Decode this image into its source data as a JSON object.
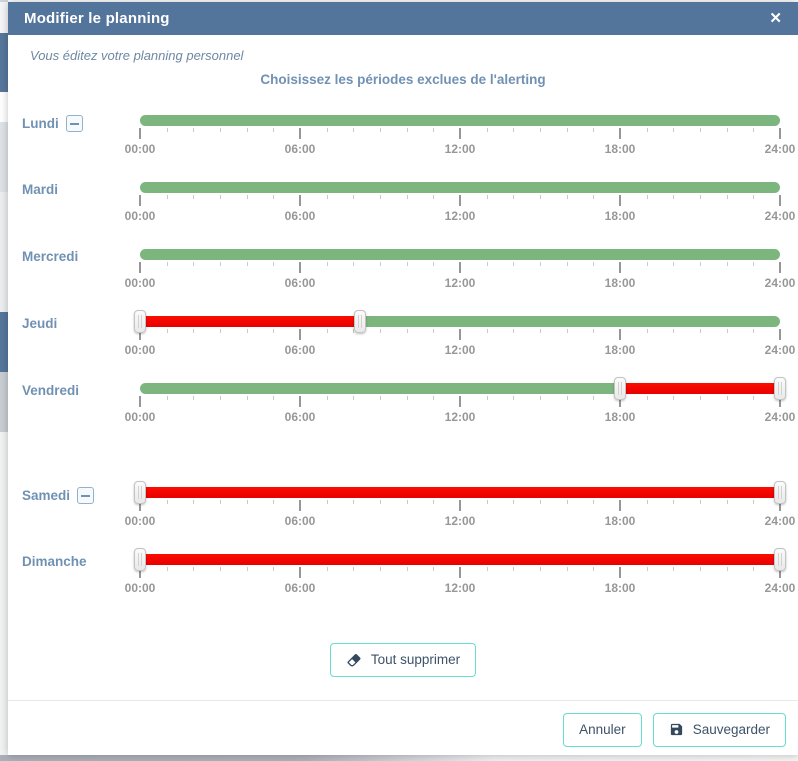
{
  "modal": {
    "title": "Modifier le planning",
    "close_glyph": "✕",
    "subtitle": "Vous éditez votre planning personnel",
    "heading": "Choisissez les périodes exclues de l'alerting"
  },
  "slider": {
    "min_hour": 0,
    "max_hour": 24,
    "minor_tick_every_hours": 1,
    "major_tick_every_hours": 6,
    "major_tick_labels": [
      "00:00",
      "06:00",
      "12:00",
      "18:00",
      "24:00"
    ]
  },
  "days": [
    {
      "label": "Lundi",
      "removable": true,
      "gap_before": false,
      "segments": [
        {
          "from": 0,
          "to": 24,
          "color": "green"
        }
      ],
      "handles": []
    },
    {
      "label": "Mardi",
      "removable": false,
      "gap_before": false,
      "segments": [
        {
          "from": 0,
          "to": 24,
          "color": "green"
        }
      ],
      "handles": []
    },
    {
      "label": "Mercredi",
      "removable": false,
      "gap_before": false,
      "segments": [
        {
          "from": 0,
          "to": 24,
          "color": "green"
        }
      ],
      "handles": []
    },
    {
      "label": "Jeudi",
      "removable": false,
      "gap_before": false,
      "segments": [
        {
          "from": 0,
          "to": 8.25,
          "color": "red"
        },
        {
          "from": 8.25,
          "to": 24,
          "color": "green"
        }
      ],
      "handles": [
        0,
        8.25
      ]
    },
    {
      "label": "Vendredi",
      "removable": false,
      "gap_before": false,
      "segments": [
        {
          "from": 0,
          "to": 18,
          "color": "green"
        },
        {
          "from": 18,
          "to": 24,
          "color": "red"
        }
      ],
      "handles": [
        18,
        24
      ]
    },
    {
      "label": "Samedi",
      "removable": true,
      "gap_before": true,
      "segments": [
        {
          "from": 0,
          "to": 24,
          "color": "red"
        }
      ],
      "handles": [
        0,
        24
      ]
    },
    {
      "label": "Dimanche",
      "removable": false,
      "gap_before": false,
      "segments": [
        {
          "from": 0,
          "to": 24,
          "color": "red"
        }
      ],
      "handles": [
        0,
        24
      ]
    }
  ],
  "actions": {
    "clear_all_label": "Tout supprimer",
    "cancel_label": "Annuler",
    "save_label": "Sauvegarder"
  },
  "colors": {
    "header_bg": "#53749b",
    "accent_blue": "#7191b3",
    "segment_green": "#7db57f",
    "segment_red": "#ee0000",
    "button_border_teal": "#68dccf",
    "button_text": "#3d5368"
  }
}
